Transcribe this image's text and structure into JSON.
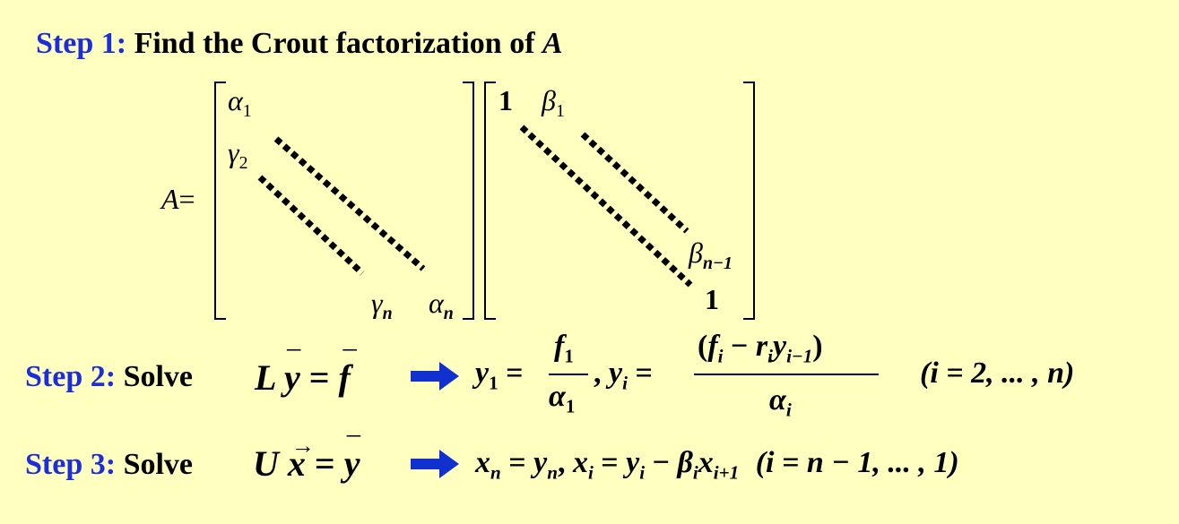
{
  "step1": {
    "label": "Step 1:",
    "text": "Find the Crout factorization of",
    "var": "A"
  },
  "matrix": {
    "lhs": "A",
    "eq": "=",
    "L": {
      "a1": "α",
      "a1_sub": "1",
      "g2": "γ",
      "g2_sub": "2",
      "gn": "γ",
      "gn_sub": "n",
      "an": "α",
      "an_sub": "n"
    },
    "U": {
      "one_top": "1",
      "b1": "β",
      "b1_sub": "1",
      "bn1": "β",
      "bn1_sub": "n−1",
      "one_bot": "1"
    }
  },
  "step2": {
    "label": "Step 2:",
    "solve": "Solve",
    "eq_L": "L",
    "eq_y": "y",
    "eq_equals": "=",
    "eq_f": "f",
    "arrow_icon": "right-arrow",
    "y1": "y",
    "y1_sub": "1",
    "eq1": "=",
    "f1_num": "f",
    "f1_num_sub": "1",
    "f1_den": "α",
    "f1_den_sub": "1",
    "comma": ",",
    "yi": "y",
    "yi_sub": "i",
    "eq2": "=",
    "num_open": "(",
    "num_f": "f",
    "num_f_sub": "i",
    "num_minus": "−",
    "num_r": "r",
    "num_r_sub": "i",
    "num_y": "y",
    "num_y_sub": "i−1",
    "num_close": ")",
    "den": "α",
    "den_sub": "i",
    "range": "(i = 2, ... , n)"
  },
  "step3": {
    "label": "Step 3:",
    "solve": "Solve",
    "eq_U": "U",
    "eq_x": "x",
    "eq_equals": "=",
    "eq_y": "y",
    "arrow_icon": "right-arrow",
    "xn": "x",
    "xn_sub": "n",
    "eq1": "=",
    "yn": "y",
    "yn_sub": "n",
    "comma": ",",
    "xi": "x",
    "xi_sub": "i",
    "eq2": "=",
    "yi": "y",
    "yi_sub": "i",
    "minus": "−",
    "beta": "β",
    "beta_sub": "i",
    "x2": "x",
    "x2_sub": "i+1",
    "range": "(i = n − 1, ... , 1)"
  },
  "colors": {
    "background": "#FFFFC0",
    "step_label": "#1C2DDB",
    "arrow": "#1030D0",
    "text": "#000000"
  }
}
